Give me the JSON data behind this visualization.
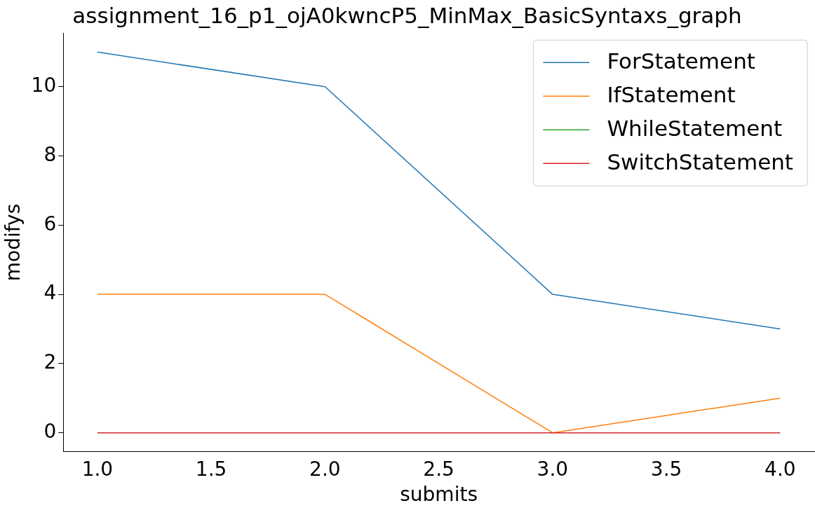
{
  "chart_data": {
    "type": "line",
    "title": "assignment_16_p1_ojA0kwncP5_MinMax_BasicSyntaxs_graph",
    "xlabel": "submits",
    "ylabel": "modifys",
    "x": [
      1,
      2,
      3,
      4
    ],
    "series": [
      {
        "name": "ForStatement",
        "color": "#1f77b4",
        "values": [
          11,
          10,
          4,
          3
        ]
      },
      {
        "name": "IfStatement",
        "color": "#ff7f0e",
        "values": [
          4,
          4,
          0,
          1
        ]
      },
      {
        "name": "WhileStatement",
        "color": "#2ca02c",
        "values": [
          null,
          null,
          null,
          null
        ]
      },
      {
        "name": "SwitchStatement",
        "color": "#d62728",
        "values": [
          0,
          0,
          0,
          0
        ]
      }
    ],
    "xlim": [
      0.85,
      4.15
    ],
    "ylim": [
      -0.55,
      11.55
    ],
    "xticks": [
      {
        "value": 1,
        "label": "1.0"
      },
      {
        "value": 1.5,
        "label": "1.5"
      },
      {
        "value": 2,
        "label": "2.0"
      },
      {
        "value": 2.5,
        "label": "2.5"
      },
      {
        "value": 3,
        "label": "3.0"
      },
      {
        "value": 3.5,
        "label": "3.5"
      },
      {
        "value": 4,
        "label": "4.0"
      }
    ],
    "yticks": [
      0,
      2,
      4,
      6,
      8,
      10
    ],
    "grid": false,
    "legend": "top right",
    "marker": "none",
    "line_style": "solid"
  }
}
